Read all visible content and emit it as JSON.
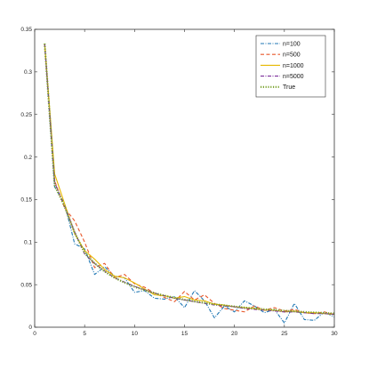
{
  "chart_data": {
    "type": "line",
    "title": "",
    "xlabel": "",
    "ylabel": "",
    "xlim": [
      0,
      30
    ],
    "ylim": [
      0,
      0.35
    ],
    "xticks": [
      0,
      5,
      10,
      15,
      20,
      25,
      30
    ],
    "yticks": [
      0,
      0.05,
      0.1,
      0.15,
      0.2,
      0.25,
      0.3,
      0.35
    ],
    "xtick_labels": [
      "0",
      "5",
      "10",
      "15",
      "20",
      "25",
      "30"
    ],
    "ytick_labels": [
      "0",
      "0.05",
      "0.1",
      "0.15",
      "0.2",
      "0.25",
      "0.3",
      "0.35"
    ],
    "grid": false,
    "legend_position": "top-right",
    "x": [
      1,
      2,
      3,
      4,
      5,
      6,
      7,
      8,
      9,
      10,
      11,
      12,
      13,
      14,
      15,
      16,
      17,
      18,
      19,
      20,
      21,
      22,
      23,
      24,
      25,
      26,
      27,
      28,
      29,
      30
    ],
    "series": [
      {
        "name": "n=100",
        "color": "#1f77b4",
        "dash": "dash-dot",
        "values": [
          0.333,
          0.165,
          0.145,
          0.098,
          0.092,
          0.062,
          0.071,
          0.06,
          0.058,
          0.041,
          0.043,
          0.034,
          0.033,
          0.036,
          0.023,
          0.043,
          0.031,
          0.011,
          0.025,
          0.018,
          0.031,
          0.025,
          0.017,
          0.021,
          0.005,
          0.028,
          0.009,
          0.008,
          0.018,
          0.012
        ]
      },
      {
        "name": "n=500",
        "color": "#e8572a",
        "dash": "dashed",
        "values": [
          0.333,
          0.172,
          0.14,
          0.125,
          0.1,
          0.07,
          0.075,
          0.058,
          0.062,
          0.051,
          0.047,
          0.04,
          0.035,
          0.03,
          0.042,
          0.032,
          0.038,
          0.028,
          0.022,
          0.02,
          0.018,
          0.025,
          0.02,
          0.023,
          0.019,
          0.021,
          0.017,
          0.016,
          0.018,
          0.015
        ]
      },
      {
        "name": "n=1000",
        "color": "#e6b800",
        "dash": "solid",
        "values": [
          0.333,
          0.18,
          0.145,
          0.11,
          0.09,
          0.08,
          0.068,
          0.06,
          0.058,
          0.052,
          0.045,
          0.038,
          0.037,
          0.034,
          0.036,
          0.032,
          0.031,
          0.027,
          0.026,
          0.024,
          0.023,
          0.022,
          0.02,
          0.02,
          0.018,
          0.019,
          0.017,
          0.017,
          0.016,
          0.015
        ]
      },
      {
        "name": "n=5000",
        "color": "#7b2d9b",
        "dash": "dash-dot",
        "values": [
          0.333,
          0.17,
          0.142,
          0.112,
          0.086,
          0.075,
          0.066,
          0.058,
          0.053,
          0.048,
          0.044,
          0.04,
          0.037,
          0.034,
          0.032,
          0.03,
          0.028,
          0.026,
          0.025,
          0.024,
          0.022,
          0.021,
          0.02,
          0.019,
          0.018,
          0.018,
          0.017,
          0.016,
          0.016,
          0.015
        ]
      },
      {
        "name": "True",
        "color": "#77a02a",
        "dash": "dotted",
        "values": [
          0.3333,
          0.1667,
          0.1417,
          0.1111,
          0.0875,
          0.075,
          0.0655,
          0.0581,
          0.0523,
          0.0475,
          0.0435,
          0.0401,
          0.0371,
          0.0346,
          0.0323,
          0.0303,
          0.0286,
          0.027,
          0.0256,
          0.0243,
          0.0231,
          0.0221,
          0.0211,
          0.0202,
          0.0194,
          0.0186,
          0.0179,
          0.0173,
          0.0167,
          0.0161
        ]
      }
    ]
  }
}
